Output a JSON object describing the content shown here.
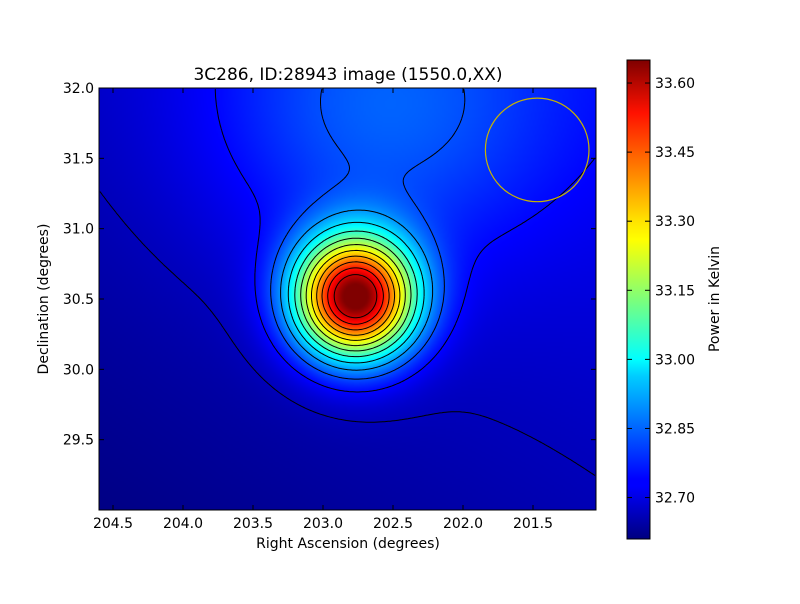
{
  "chart_data": {
    "type": "heatmap",
    "title": "3C286, ID:28943 image (1550.0,XX)",
    "xlabel": "Right Ascension (degrees)",
    "ylabel": "Declination (degrees)",
    "xlim": [
      204.6,
      201.05
    ],
    "ylim": [
      29.0,
      32.0
    ],
    "x_ticks": [
      204.5,
      204.0,
      203.5,
      203.0,
      202.5,
      202.0,
      201.5
    ],
    "x_tick_labels": [
      "204.5",
      "204.0",
      "203.5",
      "203.0",
      "202.5",
      "202.0",
      "201.5"
    ],
    "y_ticks": [
      29.5,
      30.0,
      30.5,
      31.0,
      31.5,
      32.0
    ],
    "y_tick_labels": [
      "29.5",
      "30.0",
      "30.5",
      "31.0",
      "31.5",
      "32.0"
    ],
    "colorbar": {
      "label": "Power in Kelvin",
      "range": [
        32.61,
        33.65
      ],
      "ticks": [
        32.7,
        32.85,
        33.0,
        33.15,
        33.3,
        33.45,
        33.6
      ],
      "tick_labels": [
        "32.70",
        "32.85",
        "33.00",
        "33.15",
        "33.30",
        "33.45",
        "33.60"
      ],
      "colormap": "jet"
    },
    "peak": {
      "ra": 202.77,
      "dec": 30.51,
      "value": 33.63
    },
    "beam_circle": {
      "ra": 201.47,
      "dec": 31.56,
      "radius_deg": 0.37,
      "color": "#c8b400"
    }
  }
}
